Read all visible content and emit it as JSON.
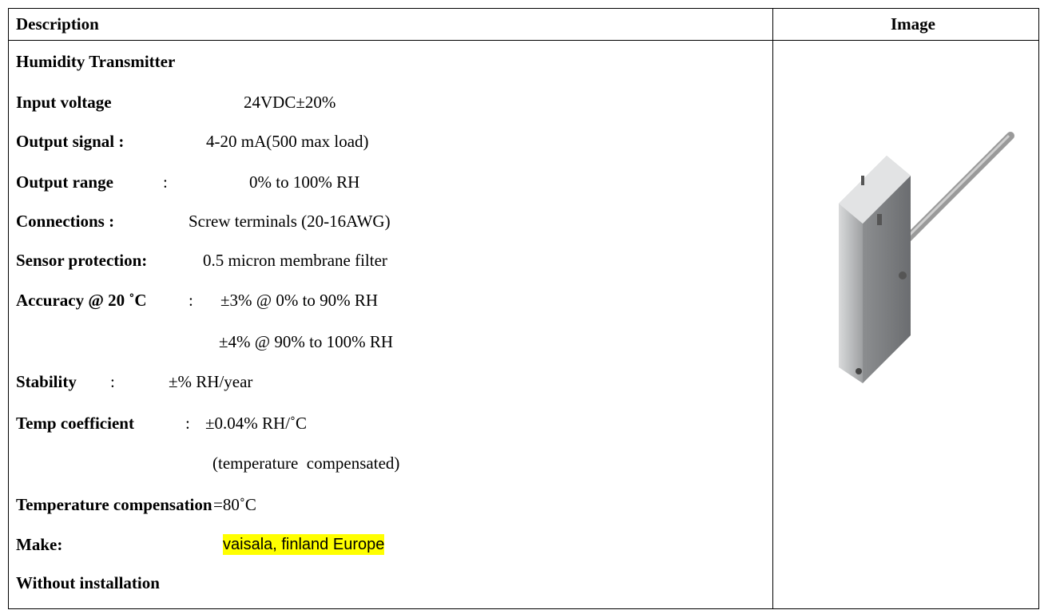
{
  "header": {
    "description": "Description",
    "image": "Image"
  },
  "lines": [
    {
      "label": "Humidity Transmitter"
    },
    {
      "label": "Input voltage",
      "value": "24VDC±20%"
    },
    {
      "label": "Output signal :",
      "value": "4-20 mA(500 max load)"
    },
    {
      "label": "Output range",
      "colon": ":",
      "value": "0% to 100% RH"
    },
    {
      "label": "Connections :",
      "value": "Screw terminals (20-16AWG)"
    },
    {
      "label": "Sensor protection:",
      "value": "0.5 micron membrane filter"
    },
    {
      "label": "Accuracy @ 20 ˚C",
      "colon": ":",
      "value": "±3% @ 0% to 90% RH"
    },
    {
      "value": "±4% @ 90% to 100% RH"
    },
    {
      "label": "Stability",
      "colon": ":",
      "value": "±% RH/year"
    },
    {
      "label": "Temp coefficient",
      "colon": ":",
      "value": "±0.04% RH/˚C"
    },
    {
      "value": "(temperature  compensated)"
    },
    {
      "label": "Temperature compensation",
      "value": "=80˚C"
    },
    {
      "label": "Make:",
      "value": "vaisala, finland Europe"
    },
    {
      "label": "Without installation"
    }
  ]
}
